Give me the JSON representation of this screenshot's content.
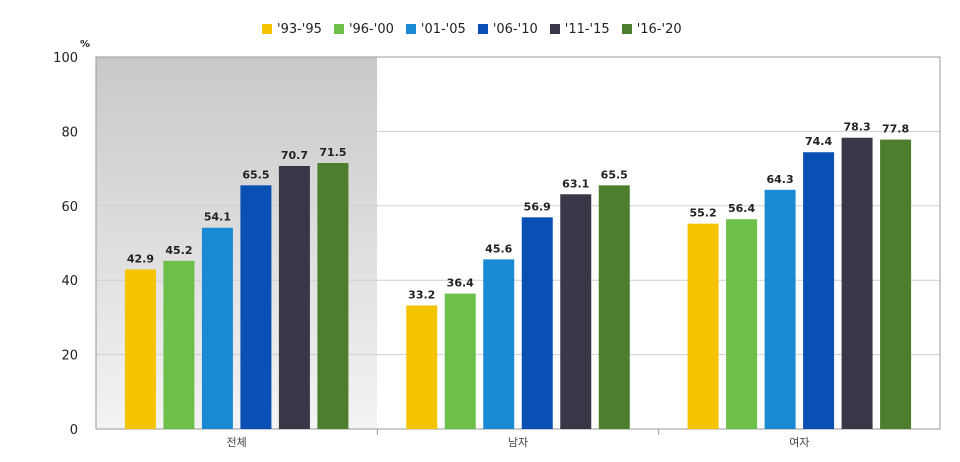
{
  "chart_data": {
    "type": "bar",
    "title": "",
    "xlabel": "",
    "ylabel": "%",
    "ylim": [
      0,
      100
    ],
    "yticks": [
      0,
      20,
      40,
      60,
      80,
      100
    ],
    "categories": [
      "전체",
      "남자",
      "여자"
    ],
    "value_labels": [
      [
        "42.9",
        "33.2",
        "55.2"
      ],
      [
        "45.2",
        "36.4",
        "56.4"
      ],
      [
        "54.1",
        "45.6",
        "64.3"
      ],
      [
        "65.5",
        "56.9",
        "74.4"
      ],
      [
        "70.7",
        "63.1",
        "78.3"
      ],
      [
        "71.5",
        "65.5",
        "77.8"
      ]
    ],
    "series": [
      {
        "name": "'93-'95",
        "color": "#F5C400",
        "values": [
          42.9,
          33.2,
          55.2
        ]
      },
      {
        "name": "'96-'00",
        "color": "#6CC04A",
        "values": [
          45.2,
          36.4,
          56.4
        ]
      },
      {
        "name": "'01-'05",
        "color": "#1A8AD4",
        "values": [
          54.1,
          45.6,
          64.3
        ]
      },
      {
        "name": "'06-'10",
        "color": "#0A4FB4",
        "values": [
          65.5,
          56.9,
          74.4
        ]
      },
      {
        "name": "'11-'15",
        "color": "#3A3648",
        "values": [
          70.7,
          63.1,
          78.3
        ]
      },
      {
        "name": "'16-'20",
        "color": "#4C7E2E",
        "values": [
          71.5,
          65.5,
          77.8
        ]
      }
    ],
    "highlight_group": "전체"
  }
}
